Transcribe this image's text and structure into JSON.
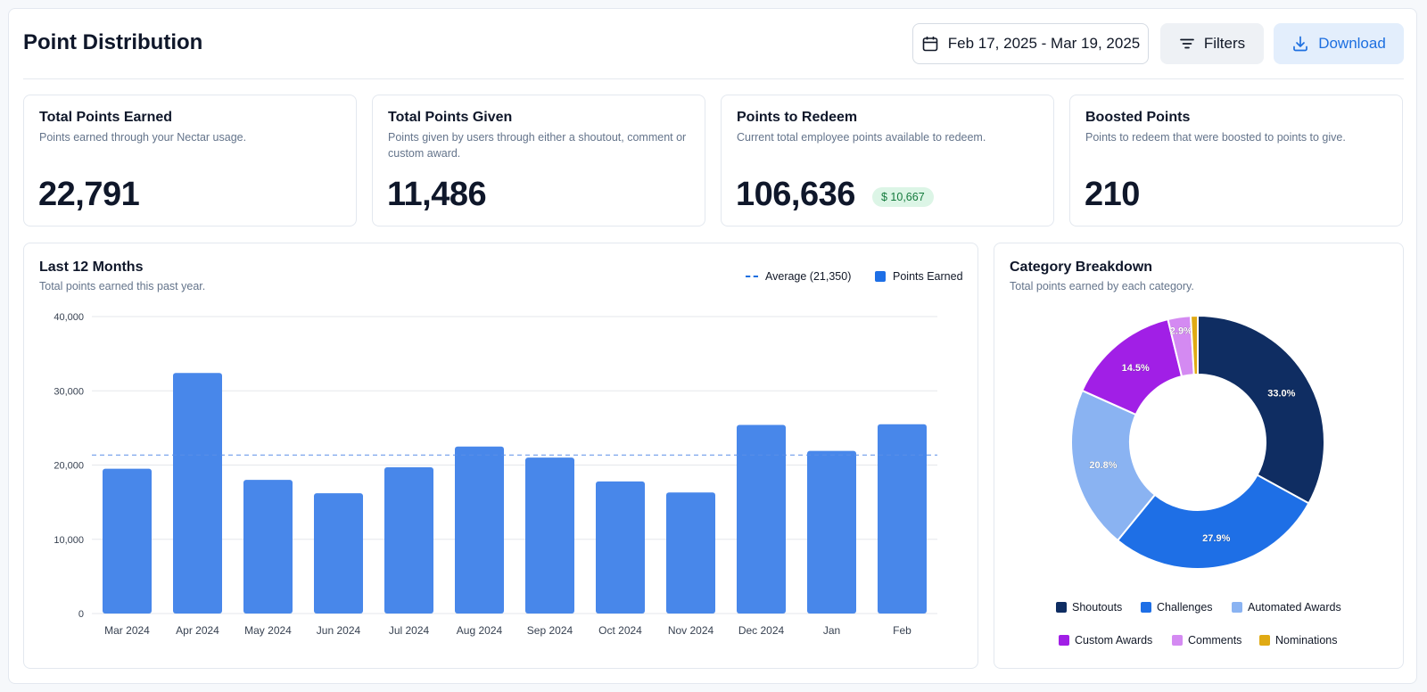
{
  "header": {
    "title": "Point Distribution",
    "date_range": "Feb 17, 2025 - Mar 19, 2025",
    "filters_label": "Filters",
    "download_label": "Download"
  },
  "stats": [
    {
      "title": "Total Points Earned",
      "desc": "Points earned through your Nectar usage.",
      "value": "22,791"
    },
    {
      "title": "Total Points Given",
      "desc": "Points given by users through either a shoutout, comment or custom award.",
      "value": "11,486"
    },
    {
      "title": "Points to Redeem",
      "desc": "Current total employee points available to redeem.",
      "value": "106,636",
      "badge": "$ 10,667"
    },
    {
      "title": "Boosted Points",
      "desc": "Points to redeem that were boosted to points to give.",
      "value": "210"
    }
  ],
  "bar_panel": {
    "title": "Last 12 Months",
    "desc": "Total points earned this past year.",
    "legend_average": "Average (21,350)",
    "legend_series": "Points Earned"
  },
  "donut_panel": {
    "title": "Category Breakdown",
    "desc": "Total points earned by each category."
  },
  "colors": {
    "bar": "#4887ea",
    "accent": "#1d6fe0",
    "shoutouts": "#0f2d62",
    "challenges": "#1e6fe6",
    "automated_awards": "#8ab3f2",
    "custom_awards": "#a11fe6",
    "comments": "#d48af2",
    "nominations": "#e0aa14"
  },
  "icons": {
    "date": "calendar-icon",
    "filters": "filter-lines-icon",
    "download": "download-icon"
  },
  "chart_data": [
    {
      "type": "bar",
      "categories": [
        "Mar 2024",
        "Apr 2024",
        "May 2024",
        "Jun 2024",
        "Jul 2024",
        "Aug 2024",
        "Sep 2024",
        "Oct 2024",
        "Nov 2024",
        "Dec 2024",
        "Jan",
        "Feb"
      ],
      "series": [
        {
          "name": "Points Earned",
          "values": [
            19500,
            32400,
            18000,
            16200,
            19700,
            22500,
            21000,
            17800,
            16300,
            25400,
            21900,
            25500
          ]
        }
      ],
      "average": 21350,
      "yticks": [
        0,
        10000,
        20000,
        30000,
        40000
      ],
      "ytick_labels": [
        "0",
        "10,000",
        "20,000",
        "30,000",
        "40,000"
      ],
      "ylim": [
        0,
        40000
      ],
      "grid": true,
      "legend": "top-right"
    },
    {
      "type": "pie",
      "variant": "donut",
      "slices": [
        {
          "label": "Shoutouts",
          "value": 33.0,
          "display": "33.0%",
          "color": "#0f2d62"
        },
        {
          "label": "Challenges",
          "value": 27.9,
          "display": "27.9%",
          "color": "#1e6fe6"
        },
        {
          "label": "Automated Awards",
          "value": 20.8,
          "display": "20.8%",
          "color": "#8ab3f2"
        },
        {
          "label": "Custom Awards",
          "value": 14.5,
          "display": "14.5%",
          "color": "#a11fe6"
        },
        {
          "label": "Comments",
          "value": 2.9,
          "display": "2.9%",
          "color": "#d48af2"
        },
        {
          "label": "Nominations",
          "value": 0.9,
          "display": "",
          "color": "#e0aa14"
        }
      ],
      "legend": "bottom"
    }
  ]
}
